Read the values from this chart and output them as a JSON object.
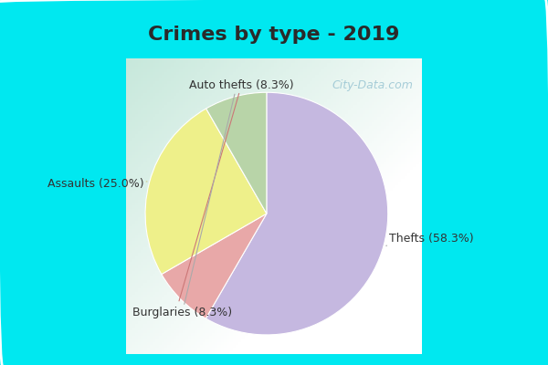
{
  "title": "Crimes by type - 2019",
  "title_fontsize": 16,
  "title_fontweight": "bold",
  "title_color": "#2a2a2a",
  "slices": [
    {
      "label": "Thefts",
      "pct": 58.3,
      "color": "#c5b8e0"
    },
    {
      "label": "Auto thefts",
      "pct": 8.3,
      "color": "#e8a8a8"
    },
    {
      "label": "Assaults",
      "pct": 25.0,
      "color": "#eef08a"
    },
    {
      "label": "Burglaries",
      "pct": 8.3,
      "color": "#b8d4a8"
    }
  ],
  "background_cyan": "#00e8f0",
  "background_white": "#ffffff",
  "background_mint_top": "#c8e8dc",
  "background_mint_fade": "#f0faf8",
  "watermark_text": "City-Data.com",
  "startangle": 90,
  "label_fontsize": 9,
  "wedge_edge_color": "white",
  "wedge_linewidth": 0.8,
  "label_color": "#333333",
  "line_color_thefts": "#aaaaaa",
  "line_color_auto": "#cc7777",
  "line_color_assaults": "#cccc88",
  "line_color_burglaries": "#aaaaaa"
}
